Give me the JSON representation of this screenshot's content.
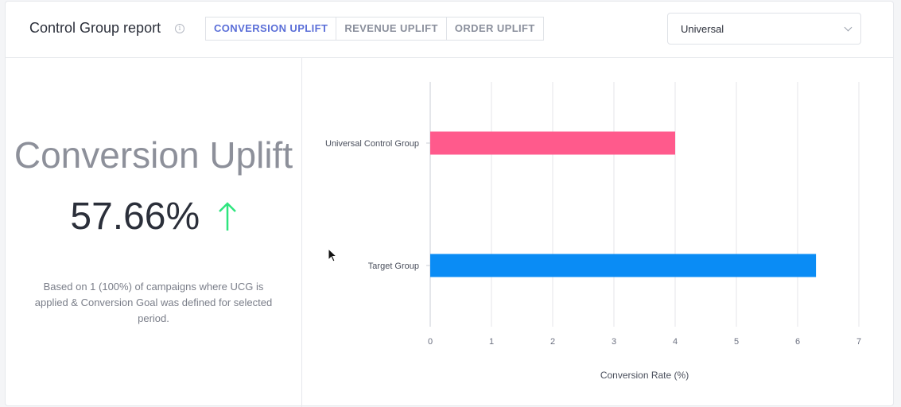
{
  "header": {
    "title": "Control Group report",
    "info_icon": "info-icon",
    "tabs": [
      {
        "label": "CONVERSION UPLIFT",
        "active": true
      },
      {
        "label": "REVENUE UPLIFT",
        "active": false
      },
      {
        "label": "ORDER UPLIFT",
        "active": false
      }
    ],
    "group_select": {
      "value": "Universal",
      "icon": "chevron-down-icon"
    }
  },
  "summary": {
    "heading": "Conversion Uplift",
    "value": "57.66%",
    "trend_icon": "arrow-up-icon",
    "trend_color": "#2ee57e",
    "note": "Based on 1 (100%) of campaigns where UCG is applied & Conversion Goal was defined for selected period."
  },
  "chart_data": {
    "type": "bar",
    "orientation": "horizontal",
    "categories": [
      "Universal Control Group",
      "Target Group"
    ],
    "values": [
      4.0,
      6.3
    ],
    "colors": [
      "#ff5a8c",
      "#0a8cf5"
    ],
    "xlabel": "Conversion Rate (%)",
    "xlim": [
      0,
      7
    ],
    "xticks": [
      0,
      1,
      2,
      3,
      4,
      5,
      6,
      7
    ],
    "grid": true
  }
}
